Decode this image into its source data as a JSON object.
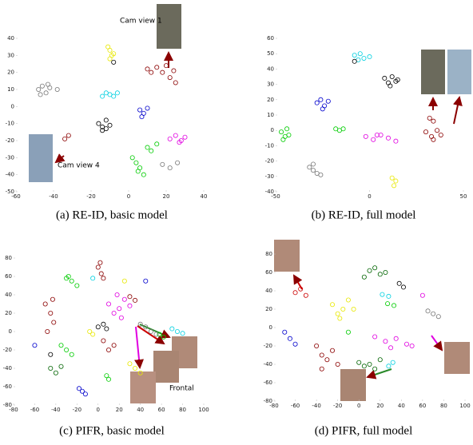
{
  "chart_data": [
    {
      "type": "scatter",
      "title": "(a) RE-ID, basic model",
      "annotations": [
        "Cam view 1",
        "Cam view 4"
      ],
      "xlim": [
        -60,
        40
      ],
      "xticks": [
        -60,
        -40,
        -20,
        0,
        20,
        40
      ],
      "ylim": [
        -50,
        40
      ],
      "yticks": [
        -50,
        -40,
        -30,
        -20,
        -10,
        0,
        10,
        20,
        30,
        40
      ],
      "series": [
        {
          "color": "#777777",
          "x": [
            -48,
            -46,
            -44,
            -42,
            -38,
            -47,
            -43
          ],
          "values": [
            10,
            12,
            8,
            11,
            10,
            7,
            13
          ]
        },
        {
          "color": "#e8e800",
          "x": [
            -11,
            -10,
            -9,
            -10,
            -8
          ],
          "values": [
            35,
            33,
            30,
            28,
            31
          ]
        },
        {
          "color": "#000000",
          "x": [
            -8
          ],
          "values": [
            26
          ]
        },
        {
          "color": "#8b0000",
          "x": [
            10,
            12,
            15,
            18,
            20,
            22,
            24,
            25,
            -34,
            -32
          ],
          "values": [
            22,
            20,
            23,
            20,
            24,
            17,
            21,
            14,
            -19,
            -17
          ]
        },
        {
          "color": "#00d0e0",
          "x": [
            -14,
            -12,
            -10,
            -8,
            -6
          ],
          "values": [
            6,
            8,
            7,
            6,
            8
          ]
        },
        {
          "color": "#000000",
          "x": [
            -16,
            -14,
            -12,
            -10,
            -12,
            -14
          ],
          "values": [
            -10,
            -12,
            -13,
            -11,
            -8,
            -14
          ]
        },
        {
          "color": "#0000cc",
          "x": [
            6,
            8,
            10,
            7
          ],
          "values": [
            -2,
            -4,
            -1,
            -6
          ]
        },
        {
          "color": "#e000e0",
          "x": [
            22,
            25,
            28,
            30,
            27
          ],
          "values": [
            -19,
            -17,
            -20,
            -18,
            -21
          ]
        },
        {
          "color": "#00cc00",
          "x": [
            2,
            4,
            6,
            8,
            5,
            10,
            12,
            15
          ],
          "values": [
            -30,
            -33,
            -36,
            -40,
            -38,
            -24,
            -26,
            -22
          ]
        },
        {
          "color": "#777777",
          "x": [
            18,
            22,
            26
          ],
          "values": [
            -34,
            -36,
            -33
          ]
        }
      ]
    },
    {
      "type": "scatter",
      "title": "(b) RE-ID, full model",
      "xlim": [
        -50,
        50
      ],
      "xticks": [
        -50,
        0,
        50
      ],
      "ylim": [
        -40,
        60
      ],
      "yticks": [
        -40,
        -30,
        -20,
        -10,
        0,
        10,
        20,
        30,
        40,
        50,
        60
      ],
      "series": [
        {
          "color": "#00d0e0",
          "x": [
            -8,
            -5,
            -3,
            0,
            -6
          ],
          "values": [
            49,
            50,
            47,
            48,
            46
          ]
        },
        {
          "color": "#000000",
          "x": [
            -8,
            8,
            10,
            12,
            14,
            11,
            15
          ],
          "values": [
            45,
            34,
            31,
            35,
            32,
            29,
            33
          ]
        },
        {
          "color": "#0000cc",
          "x": [
            -28,
            -26,
            -24,
            -22,
            -25
          ],
          "values": [
            18,
            20,
            16,
            19,
            14
          ]
        },
        {
          "color": "#00cc00",
          "x": [
            -47,
            -45,
            -43,
            -46,
            -44,
            -18,
            -16,
            -14
          ],
          "values": [
            -1,
            -4,
            -3,
            -6,
            1,
            1,
            0,
            1
          ]
        },
        {
          "color": "#e000e0",
          "x": [
            -2,
            2,
            6,
            10,
            14,
            4
          ],
          "values": [
            -4,
            -6,
            -3,
            -5,
            -7,
            -3
          ]
        },
        {
          "color": "#8b0000",
          "x": [
            30,
            33,
            36,
            38,
            34,
            32,
            34
          ],
          "values": [
            -1,
            -4,
            0,
            -3,
            -6,
            8,
            6
          ]
        },
        {
          "color": "#777777",
          "x": [
            -32,
            -30,
            -28,
            -26,
            -30
          ],
          "values": [
            -24,
            -26,
            -28,
            -29,
            -22
          ]
        },
        {
          "color": "#e8e800",
          "x": [
            12,
            14,
            13
          ],
          "values": [
            -31,
            -33,
            -36
          ]
        }
      ]
    },
    {
      "type": "scatter",
      "title": "(c) PIFR, basic model",
      "annotations": [
        "Frontal"
      ],
      "xlim": [
        -80,
        100
      ],
      "xticks": [
        -80,
        -60,
        -40,
        -20,
        0,
        20,
        40,
        60,
        80,
        100
      ],
      "ylim": [
        -80,
        80
      ],
      "yticks": [
        -80,
        -60,
        -40,
        -20,
        0,
        20,
        40,
        60,
        80
      ],
      "series": [
        {
          "color": "#8b0000",
          "x": [
            0,
            3,
            5,
            2,
            -50,
            -45,
            -42,
            -48,
            -43,
            30,
            35,
            5,
            10,
            15
          ],
          "values": [
            70,
            63,
            58,
            75,
            30,
            20,
            10,
            0,
            35,
            38,
            34,
            -10,
            -20,
            -15
          ]
        },
        {
          "color": "#00cc00",
          "x": [
            -30,
            -25,
            -20,
            -28,
            58,
            62,
            -35,
            -30,
            -25,
            8,
            10
          ],
          "values": [
            58,
            55,
            50,
            60,
            -3,
            -6,
            -15,
            -20,
            -25,
            -48,
            -52
          ]
        },
        {
          "color": "#00d0e0",
          "x": [
            -5,
            70,
            75,
            80
          ],
          "values": [
            58,
            3,
            0,
            -2
          ]
        },
        {
          "color": "#0000cc",
          "x": [
            45,
            -18,
            -15,
            -12,
            -60
          ],
          "values": [
            55,
            -62,
            -65,
            -68,
            -15
          ]
        },
        {
          "color": "#e8e800",
          "x": [
            25,
            30,
            35,
            40,
            -8,
            -5
          ],
          "values": [
            55,
            -35,
            -40,
            -45,
            0,
            -3
          ]
        },
        {
          "color": "#e000e0",
          "x": [
            10,
            15,
            20,
            25,
            30,
            18,
            22
          ],
          "values": [
            30,
            20,
            25,
            35,
            28,
            40,
            15
          ]
        },
        {
          "color": "#000000",
          "x": [
            0,
            5,
            8,
            -45
          ],
          "values": [
            5,
            8,
            3,
            -25
          ]
        },
        {
          "color": "#777777",
          "x": [
            40,
            45,
            50,
            55
          ],
          "values": [
            8,
            5,
            0,
            -3
          ]
        },
        {
          "color": "#006400",
          "x": [
            -45,
            -40,
            -35
          ],
          "values": [
            -40,
            -45,
            -38
          ]
        }
      ]
    },
    {
      "type": "scatter",
      "title": "(d) PIFR, full model",
      "xlim": [
        -80,
        100
      ],
      "xticks": [
        -80,
        -60,
        -40,
        -20,
        0,
        20,
        40,
        60,
        80,
        100
      ],
      "ylim": [
        -80,
        80
      ],
      "yticks": [
        -80,
        -60,
        -40,
        -20,
        0,
        20,
        40,
        60,
        80
      ],
      "series": [
        {
          "color": "#cc0000",
          "x": [
            -60,
            -55,
            -50
          ],
          "values": [
            38,
            42,
            35
          ]
        },
        {
          "color": "#006400",
          "x": [
            5,
            10,
            15,
            20,
            25,
            0,
            5,
            10,
            15,
            20
          ],
          "values": [
            55,
            62,
            65,
            58,
            60,
            -38,
            -42,
            -40,
            -45,
            -35
          ]
        },
        {
          "color": "#000000",
          "x": [
            38,
            42
          ],
          "values": [
            48,
            44
          ]
        },
        {
          "color": "#00d0e0",
          "x": [
            22,
            28,
            28,
            32
          ],
          "values": [
            36,
            34,
            -42,
            -38
          ]
        },
        {
          "color": "#e000e0",
          "x": [
            60,
            15,
            25,
            35,
            45,
            50,
            30
          ],
          "values": [
            35,
            -10,
            -15,
            -12,
            -18,
            -20,
            -22
          ]
        },
        {
          "color": "#e8e800",
          "x": [
            -25,
            -20,
            -15,
            -10,
            -5,
            -18
          ],
          "values": [
            25,
            15,
            20,
            30,
            20,
            10
          ]
        },
        {
          "color": "#00cc00",
          "x": [
            27,
            33,
            -10
          ],
          "values": [
            26,
            24,
            -5
          ]
        },
        {
          "color": "#777777",
          "x": [
            65,
            70,
            75
          ],
          "values": [
            18,
            15,
            12
          ]
        },
        {
          "color": "#0000cc",
          "x": [
            -70,
            -65,
            -60
          ],
          "values": [
            -5,
            -12,
            -18
          ]
        },
        {
          "color": "#8b0000",
          "x": [
            -40,
            -35,
            -30,
            -25,
            -20,
            -35
          ],
          "values": [
            -20,
            -30,
            -35,
            -25,
            -40,
            -45
          ]
        }
      ]
    }
  ]
}
